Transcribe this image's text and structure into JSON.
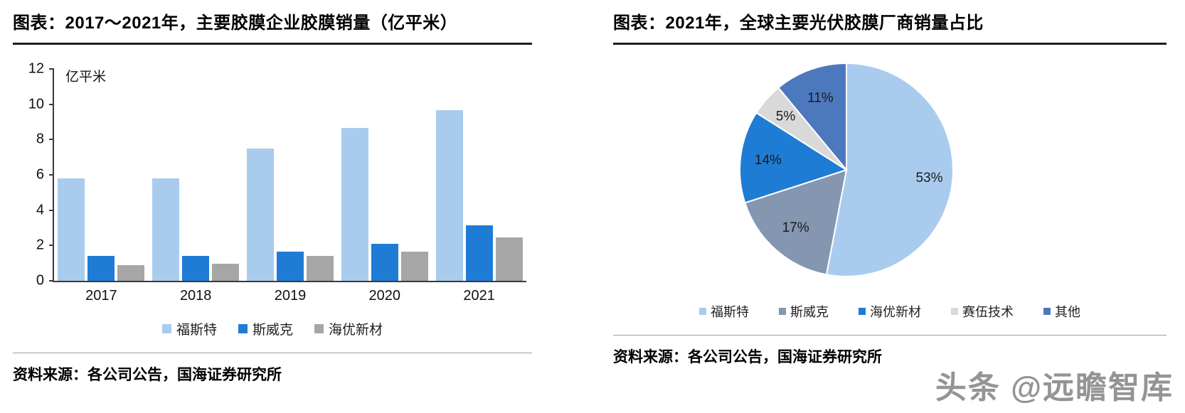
{
  "watermark": "头条 @远瞻智库",
  "chart_data": [
    {
      "type": "bar",
      "title": "图表：2017～2021年，主要胶膜企业胶膜销量（亿平米）",
      "unit_label": "亿平米",
      "categories": [
        "2017",
        "2018",
        "2019",
        "2020",
        "2021"
      ],
      "series": [
        {
          "name": "福斯特",
          "color": "#A9CCEE",
          "values": [
            5.8,
            5.8,
            7.5,
            8.65,
            9.65
          ]
        },
        {
          "name": "斯威克",
          "color": "#1F7CD4",
          "values": [
            1.4,
            1.4,
            1.65,
            2.1,
            3.15
          ]
        },
        {
          "name": "海优新材",
          "color": "#A6A6A6",
          "values": [
            0.9,
            0.95,
            1.4,
            1.65,
            2.45
          ]
        }
      ],
      "ylim": [
        0,
        12
      ],
      "yticks": [
        0,
        2,
        4,
        6,
        8,
        10,
        12
      ],
      "legend_position": "bottom",
      "grid": false,
      "source": "资料来源：各公司公告，国海证券研究所"
    },
    {
      "type": "pie",
      "title": "图表：2021年，全球主要光伏胶膜厂商销量占比",
      "slices": [
        {
          "name": "福斯特",
          "value": 53,
          "label": "53%",
          "color": "#A9CCEE"
        },
        {
          "name": "斯威克",
          "value": 17,
          "label": "17%",
          "color": "#8496B0"
        },
        {
          "name": "海优新材",
          "value": 14,
          "label": "14%",
          "color": "#1F7CD4"
        },
        {
          "name": "赛伍技术",
          "value": 5,
          "label": "5%",
          "color": "#D9D9D9"
        },
        {
          "name": "其他",
          "value": 11,
          "label": "11%",
          "color": "#4C78BE"
        }
      ],
      "legend_position": "bottom",
      "source": "资料来源：各公司公告，国海证券研究所"
    }
  ]
}
